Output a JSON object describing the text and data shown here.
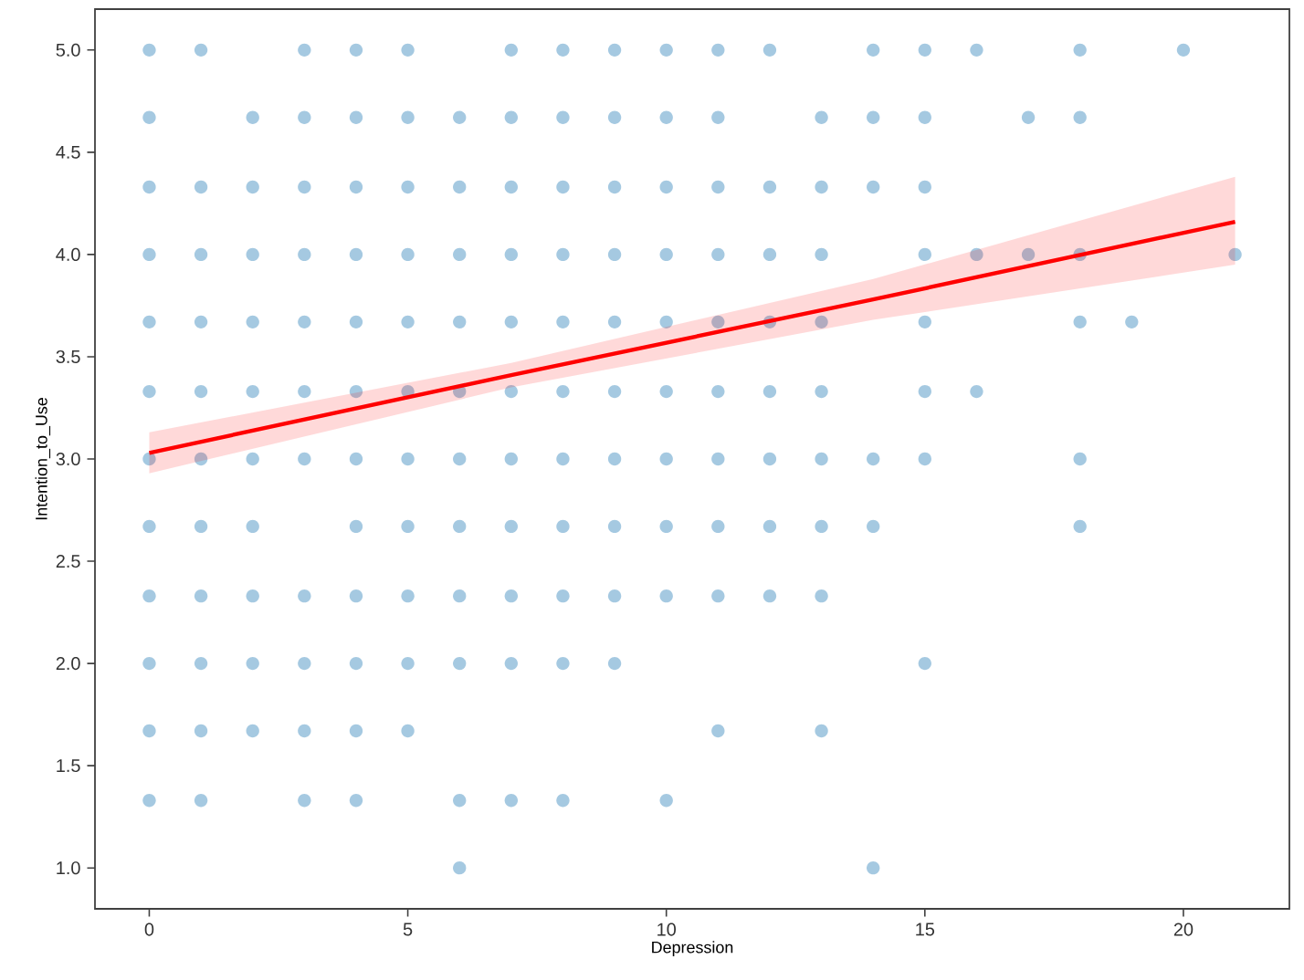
{
  "chart_data": {
    "type": "scatter",
    "xlabel": "Depression",
    "ylabel": "Intention_to_Use",
    "xlim": [
      -1.05,
      22.05
    ],
    "ylim": [
      0.8,
      5.2
    ],
    "xticks": [
      0,
      5,
      10,
      15,
      20
    ],
    "yticks": [
      {
        "value": 1.0,
        "label": "1.0"
      },
      {
        "value": 1.5,
        "label": "1.5"
      },
      {
        "value": 2.0,
        "label": "2.0"
      },
      {
        "value": 2.5,
        "label": "2.5"
      },
      {
        "value": 3.0,
        "label": "3.0"
      },
      {
        "value": 3.5,
        "label": "3.5"
      },
      {
        "value": 4.0,
        "label": "4.0"
      },
      {
        "value": 4.5,
        "label": "4.5"
      },
      {
        "value": 5.0,
        "label": "5.0"
      }
    ],
    "grid": false,
    "series": [
      {
        "marker": "circle",
        "color": "#1f77b4",
        "x": [
          0,
          1,
          3,
          4,
          5,
          7,
          8,
          9,
          10,
          11,
          12,
          14,
          15,
          16,
          18,
          20,
          0,
          2,
          3,
          4,
          5,
          6,
          7,
          8,
          9,
          10,
          11,
          13,
          14,
          15,
          17,
          18,
          0,
          1,
          2,
          3,
          4,
          5,
          6,
          7,
          8,
          9,
          10,
          11,
          12,
          13,
          14,
          15,
          0,
          1,
          2,
          3,
          4,
          5,
          6,
          7,
          8,
          9,
          10,
          11,
          12,
          13,
          15,
          16,
          17,
          18,
          21,
          0,
          1,
          2,
          3,
          4,
          5,
          6,
          7,
          8,
          9,
          10,
          11,
          12,
          13,
          15,
          18,
          19,
          0,
          1,
          2,
          3,
          4,
          5,
          6,
          7,
          8,
          9,
          10,
          11,
          12,
          13,
          15,
          16,
          0,
          1,
          2,
          3,
          4,
          5,
          6,
          7,
          8,
          9,
          10,
          11,
          12,
          13,
          14,
          15,
          18,
          0,
          1,
          2,
          4,
          5,
          6,
          7,
          8,
          9,
          10,
          11,
          12,
          13,
          14,
          18,
          0,
          1,
          2,
          3,
          4,
          5,
          6,
          7,
          8,
          9,
          10,
          11,
          12,
          13,
          0,
          1,
          2,
          3,
          4,
          5,
          6,
          7,
          8,
          9,
          15,
          0,
          1,
          2,
          3,
          4,
          5,
          11,
          13,
          0,
          1,
          3,
          4,
          6,
          7,
          8,
          10,
          6,
          14
        ],
        "values": [
          5,
          5,
          5,
          5,
          5,
          5,
          5,
          5,
          5,
          5,
          5,
          5,
          5,
          5,
          5,
          5,
          4.67,
          4.67,
          4.67,
          4.67,
          4.67,
          4.67,
          4.67,
          4.67,
          4.67,
          4.67,
          4.67,
          4.67,
          4.67,
          4.67,
          4.67,
          4.67,
          4.33,
          4.33,
          4.33,
          4.33,
          4.33,
          4.33,
          4.33,
          4.33,
          4.33,
          4.33,
          4.33,
          4.33,
          4.33,
          4.33,
          4.33,
          4.33,
          4,
          4,
          4,
          4,
          4,
          4,
          4,
          4,
          4,
          4,
          4,
          4,
          4,
          4,
          4,
          4,
          4,
          4,
          4,
          3.67,
          3.67,
          3.67,
          3.67,
          3.67,
          3.67,
          3.67,
          3.67,
          3.67,
          3.67,
          3.67,
          3.67,
          3.67,
          3.67,
          3.67,
          3.67,
          3.67,
          3.33,
          3.33,
          3.33,
          3.33,
          3.33,
          3.33,
          3.33,
          3.33,
          3.33,
          3.33,
          3.33,
          3.33,
          3.33,
          3.33,
          3.33,
          3.33,
          3,
          3,
          3,
          3,
          3,
          3,
          3,
          3,
          3,
          3,
          3,
          3,
          3,
          3,
          3,
          3,
          3,
          2.67,
          2.67,
          2.67,
          2.67,
          2.67,
          2.67,
          2.67,
          2.67,
          2.67,
          2.67,
          2.67,
          2.67,
          2.67,
          2.67,
          2.67,
          2.33,
          2.33,
          2.33,
          2.33,
          2.33,
          2.33,
          2.33,
          2.33,
          2.33,
          2.33,
          2.33,
          2.33,
          2.33,
          2.33,
          2,
          2,
          2,
          2,
          2,
          2,
          2,
          2,
          2,
          2,
          2,
          1.67,
          1.67,
          1.67,
          1.67,
          1.67,
          1.67,
          1.67,
          1.67,
          1.33,
          1.33,
          1.33,
          1.33,
          1.33,
          1.33,
          1.33,
          1.33,
          1,
          1
        ]
      },
      {
        "type": "line",
        "color": "#ff0000",
        "x": [
          0,
          7,
          14,
          21
        ],
        "values": [
          3.03,
          3.41,
          3.78,
          4.16
        ],
        "lower": [
          2.93,
          3.35,
          3.68,
          3.95
        ],
        "upper": [
          3.13,
          3.47,
          3.88,
          4.38
        ]
      }
    ]
  }
}
